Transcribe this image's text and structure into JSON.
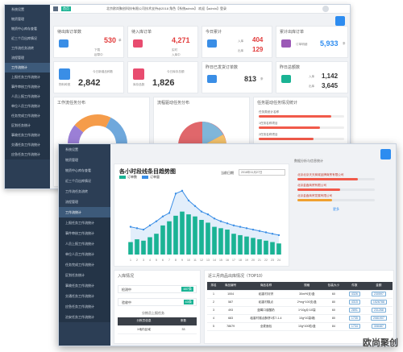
{
  "back_window": {
    "sidebar": {
      "items": [
        {
          "label": "系统设置"
        },
        {
          "label": "物资管理"
        },
        {
          "label": "物资中心库存查看"
        },
        {
          "label": "近三个月出库情况"
        },
        {
          "label": "工作流任务流转"
        },
        {
          "label": "流程管理"
        },
        {
          "label": "工作流统计"
        },
        {
          "label": "上报任务工作流统计"
        },
        {
          "label": "事件审核工作流统计"
        },
        {
          "label": "人员上报工作流统计"
        },
        {
          "label": "单位人员工作流统计"
        },
        {
          "label": "任务完成工作流统计"
        },
        {
          "label": "区划任务统计"
        },
        {
          "label": "事故任务工作流统计"
        },
        {
          "label": "交通任务工作流统计"
        },
        {
          "label": "应急任务工作流统计"
        }
      ]
    },
    "topbar": {
      "tag": "首页",
      "center_text": "北京欧尚聚创科技有限公司技术支持@2018   角色【系统admin】  欢迎【admin】登录"
    },
    "cards": {
      "pending_outbound": {
        "title": "待出库订单数",
        "value": "530",
        "unit": "单",
        "sub1": "下载",
        "sub2": "起草中"
      },
      "pending_inbound": {
        "title": "待入库订单",
        "value": "4,271",
        "sub1": "实时",
        "sub2": "入库中"
      },
      "today_total": {
        "title": "今日累计",
        "value1": "404",
        "value2": "129",
        "sub1": "入库",
        "sub2": "出库"
      },
      "cumulative": {
        "title": "累计出库订单",
        "value": "5,933",
        "unit": "条",
        "sub": "订单明细"
      },
      "materials": {
        "title": "物料种类",
        "value": "2,842",
        "sub": "今日新增品种数"
      },
      "storage": {
        "title": "今日库存总额",
        "value": "1,826",
        "sub": "库存品数"
      },
      "yesterday": {
        "title": "昨日已发货订单数",
        "value": "813",
        "unit": "条"
      },
      "yesterday_total": {
        "title": "昨日总额数",
        "value1": "1,142",
        "value2": "3,645",
        "sub1": "入库",
        "sub2": "出库"
      }
    },
    "charts": {
      "left_title": "工作流任务分布",
      "mid_title": "流程驱动任务分布",
      "right_title": "任务驱动任务情况统计",
      "right_bars": [
        {
          "label": "任务类统计名称",
          "value": 85
        },
        {
          "label": "1任务名称项目",
          "value": 72
        },
        {
          "label": "2任务名称项目",
          "value": 64
        },
        {
          "label": "3任务名称项目",
          "value": 58
        },
        {
          "label": "4任务名称项目",
          "value": 40
        },
        {
          "label": "5任务名称项目",
          "value": 30
        }
      ]
    }
  },
  "front_window": {
    "sidebar": {
      "items": [
        {
          "label": "系统设置"
        },
        {
          "label": "物资管理"
        },
        {
          "label": "物资中心库存查看"
        },
        {
          "label": "近三个月出库情况"
        },
        {
          "label": "工作流任务流转"
        },
        {
          "label": "流程管理"
        },
        {
          "label": "工作流统计"
        },
        {
          "label": "上报任务工作流统计"
        },
        {
          "label": "事件审核工作流统计"
        },
        {
          "label": "人员上报工作流统计"
        },
        {
          "label": "单位人员工作流统计"
        },
        {
          "label": "任务完成工作流统计"
        },
        {
          "label": "区划任务统计"
        },
        {
          "label": "事故任务工作流统计"
        },
        {
          "label": "交通任务工作流统计"
        },
        {
          "label": "应急任务工作流统计"
        },
        {
          "label": "治安任务工作流统计"
        }
      ]
    },
    "chart_panel": {
      "title": "各小时段线条目趋势图",
      "legend": [
        "订单数",
        "订单量"
      ],
      "date_label": "当前日期",
      "date_value": "2018年11月27日"
    },
    "right_panel": {
      "title": "数据分析与信息统计",
      "bars": [
        {
          "label": "北京北京天天商城品牌商贸有限公司",
          "value": 78,
          "color": "#f15a4a"
        },
        {
          "label": "北京金鑫商贸有限公司",
          "value": 55,
          "color": "#f15a4a"
        },
        {
          "label": "北京金鑫商贸发展有限公司",
          "value": 45,
          "color": "#f0a030"
        }
      ],
      "link": "更多"
    },
    "status_panel": {
      "title": "入库情况",
      "rows": [
        {
          "label": "检测中",
          "value": "487条"
        },
        {
          "label": "验收中",
          "value": "43条"
        }
      ],
      "subtitle": "分拣员上报任务",
      "table_headers": [
        "分拣员信息",
        "条数"
      ],
      "table_rows": [
        [
          "X地内区域",
          "33"
        ]
      ]
    },
    "sales_table": {
      "title": "近三月商品出库情况（TOP10）",
      "headers": [
        "排名",
        "商品编号",
        "商品名称",
        "规格",
        "包装大小",
        "件数",
        "金额"
      ],
      "rows": [
        [
          "1",
          "1004",
          "稻香村月饼",
          "30ml*6支/盒",
          "60",
          "4326",
          "230597"
        ],
        [
          "2",
          "587",
          "稻香村糕点",
          "2*mg*100支/盒",
          "80",
          "4315",
          "1526788"
        ],
        [
          "3",
          "493",
          "蓝莓口感酸奶",
          "1*10g片/10袋",
          "60",
          "2891",
          "231268"
        ],
        [
          "4",
          "683",
          "稻香村糕点酥饼1件7-1-4",
          "10g*10袋/箱",
          "80",
          "1735",
          "2081907"
        ],
        [
          "5",
          "78679",
          "全麦面包",
          "10g*100粒/盒",
          "84",
          "1734",
          "308487"
        ]
      ]
    },
    "chart_data": {
      "type": "bar",
      "categories": [
        "1",
        "2",
        "3",
        "4",
        "5",
        "6",
        "7",
        "8",
        "9",
        "10",
        "11",
        "12",
        "13",
        "14",
        "15",
        "16",
        "17",
        "18",
        "19",
        "20",
        "21",
        "22",
        "23",
        "24"
      ],
      "series": [
        {
          "name": "订单数",
          "values": [
            18,
            22,
            20,
            25,
            30,
            42,
            48,
            56,
            62,
            58,
            55,
            50,
            46,
            40,
            38,
            36,
            30,
            28,
            26,
            24,
            22,
            20,
            18,
            16
          ]
        },
        {
          "name": "订单量",
          "values": [
            40,
            38,
            36,
            42,
            48,
            55,
            60,
            88,
            92,
            78,
            70,
            62,
            58,
            52,
            48,
            45,
            42,
            40,
            38,
            36,
            34,
            32,
            30,
            28
          ]
        }
      ],
      "ylim": [
        0,
        100
      ]
    }
  },
  "watermark": "欧尚聚创"
}
